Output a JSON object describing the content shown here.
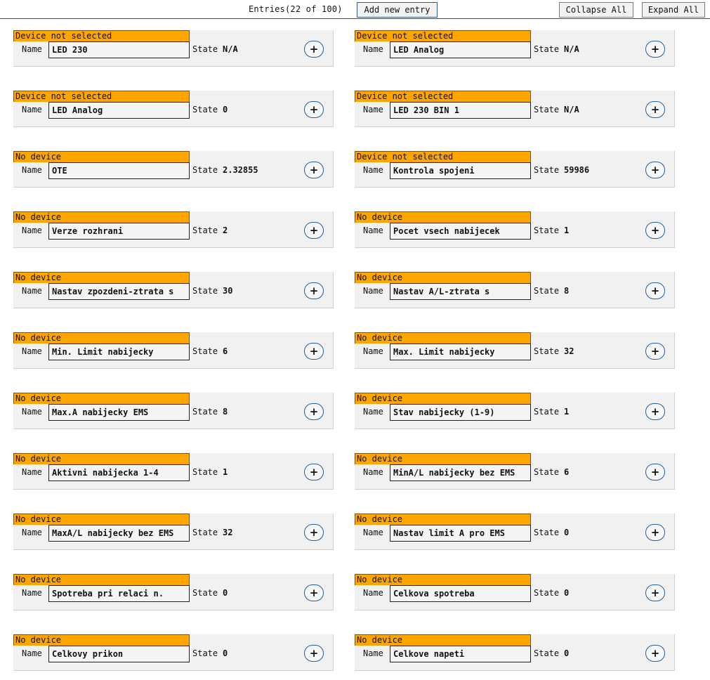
{
  "toolbar": {
    "entries_label": "Entries(22 of 100)",
    "add_label": "Add new entry",
    "collapse_label": "Collapse All",
    "expand_label": "Expand All"
  },
  "labels": {
    "name": "Name",
    "state": "State",
    "plus": "+"
  },
  "colors": {
    "status_bar": "#ffa500",
    "plus_border": "#1f5fa0"
  },
  "entries": [
    {
      "status": "Device not selected",
      "name": "LED 230",
      "state": "N/A"
    },
    {
      "status": "Device not selected",
      "name": "LED Analog",
      "state": "N/A"
    },
    {
      "status": "Device not selected",
      "name": "LED Analog",
      "state": "0"
    },
    {
      "status": "Device not selected",
      "name": "LED 230 BIN 1",
      "state": "N/A"
    },
    {
      "status": "No device",
      "name": "OTE",
      "state": "2.32855"
    },
    {
      "status": "Device not selected",
      "name": "Kontrola spojeni",
      "state": "59986"
    },
    {
      "status": "No device",
      "name": "Verze rozhrani",
      "state": "2"
    },
    {
      "status": "No device",
      "name": "Pocet vsech nabijecek",
      "state": "1"
    },
    {
      "status": "No device",
      "name": "Nastav zpozdeni-ztrata s",
      "state": "30"
    },
    {
      "status": "No device",
      "name": "Nastav A/L-ztrata s",
      "state": "8"
    },
    {
      "status": "No device",
      "name": "Min. Limit nabijecky",
      "state": "6"
    },
    {
      "status": "No device",
      "name": "Max. Limit nabijecky",
      "state": "32"
    },
    {
      "status": "No device",
      "name": "Max.A nabijecky EMS",
      "state": "8"
    },
    {
      "status": "No device",
      "name": "Stav nabijecky (1-9)",
      "state": "1"
    },
    {
      "status": "No device",
      "name": "Aktivni nabijecka 1-4",
      "state": "1"
    },
    {
      "status": "No device",
      "name": "MinA/L nabijecky bez EMS",
      "state": "6"
    },
    {
      "status": "No device",
      "name": "MaxA/L nabijecky bez EMS",
      "state": "32"
    },
    {
      "status": "No device",
      "name": "Nastav limit A pro EMS",
      "state": "0"
    },
    {
      "status": "No device",
      "name": "Spotreba pri relaci n.",
      "state": "0"
    },
    {
      "status": "No device",
      "name": "Celkova spotreba",
      "state": "0"
    },
    {
      "status": "No device",
      "name": "Celkovy prikon",
      "state": "0"
    },
    {
      "status": "No device",
      "name": "Celkove napeti",
      "state": "0"
    }
  ]
}
